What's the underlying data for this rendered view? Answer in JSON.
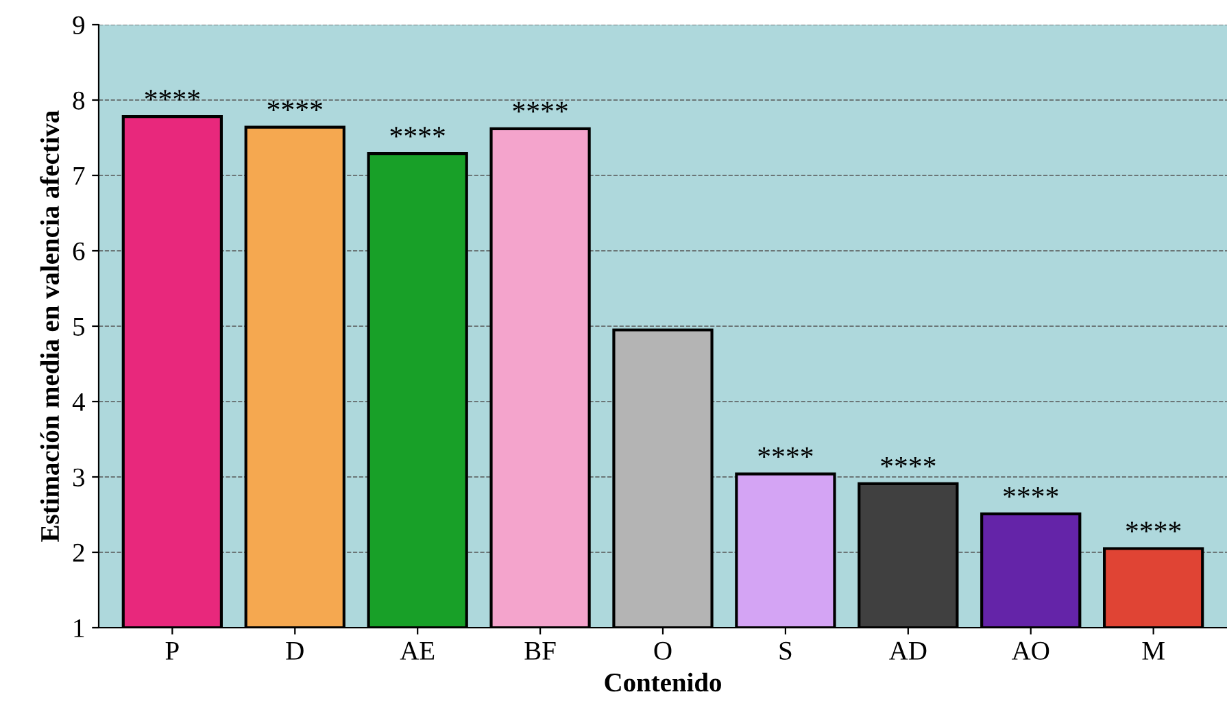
{
  "chart_data": {
    "type": "bar",
    "xlabel": "Contenido",
    "ylabel": "Estimación media en valencia afectiva",
    "categories": [
      "P",
      "D",
      "AE",
      "BF",
      "O",
      "S",
      "AD",
      "AO",
      "M"
    ],
    "values": [
      7.78,
      7.64,
      7.29,
      7.62,
      4.95,
      3.04,
      2.91,
      2.51,
      2.05
    ],
    "colors": [
      "#e8287c",
      "#f5a850",
      "#18a028",
      "#f4a4cc",
      "#b4b4b4",
      "#d4a4f4",
      "#404040",
      "#6424a8",
      "#e04434"
    ],
    "ylim": [
      1,
      9
    ],
    "yticks": [
      1,
      2,
      3,
      4,
      5,
      6,
      7,
      8,
      9
    ],
    "grid": "y",
    "annotations": [
      {
        "text": "****",
        "x": "P",
        "y": 7.78
      },
      {
        "text": "****",
        "x": "D",
        "y": 7.64
      },
      {
        "text": "****",
        "x": "AE",
        "y": 7.29
      },
      {
        "text": "****",
        "x": "BF",
        "y": 7.62
      },
      {
        "text": "****",
        "x": "S",
        "y": 3.04
      },
      {
        "text": "****",
        "x": "AD",
        "y": 2.91
      },
      {
        "text": "****",
        "x": "AO",
        "y": 2.51
      },
      {
        "text": "****",
        "x": "M",
        "y": 2.05
      }
    ]
  }
}
